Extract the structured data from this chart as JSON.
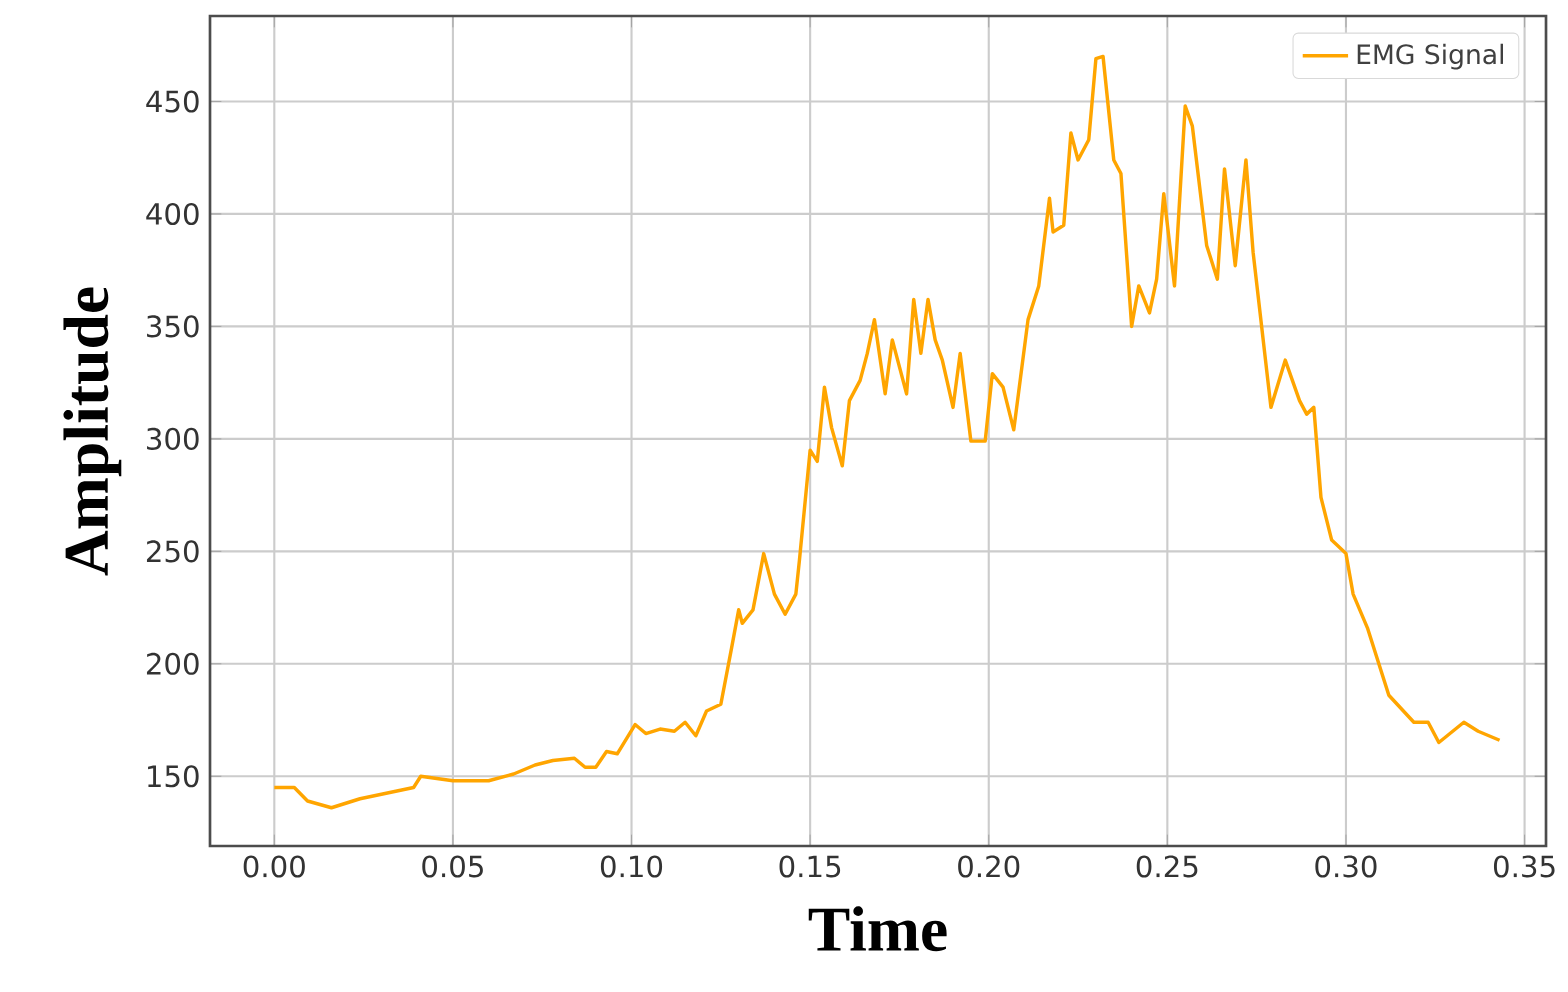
{
  "chart_data": {
    "type": "line",
    "xlabel": "Time",
    "ylabel": "Amplitude",
    "xlim": [
      -0.018,
      0.356
    ],
    "ylim": [
      119,
      488
    ],
    "xticks": [
      {
        "value": 0,
        "label": "0.00"
      },
      {
        "value": 0.05,
        "label": "0.05"
      },
      {
        "value": 0.1,
        "label": "0.10"
      },
      {
        "value": 0.15,
        "label": "0.15"
      },
      {
        "value": 0.2,
        "label": "0.20"
      },
      {
        "value": 0.25,
        "label": "0.25"
      },
      {
        "value": 0.3,
        "label": "0.30"
      },
      {
        "value": 0.35,
        "label": "0.35"
      }
    ],
    "yticks": [
      150,
      200,
      250,
      300,
      350,
      400,
      450
    ],
    "grid": true,
    "legend": "top right",
    "marker": "none",
    "line_style": "solid",
    "series": [
      {
        "name": "EMG Signal",
        "color": "#ffa500",
        "x": [
          0.0,
          0.0056,
          0.0093,
          0.016,
          0.024,
          0.03,
          0.039,
          0.041,
          0.05,
          0.06,
          0.067,
          0.073,
          0.078,
          0.084,
          0.087,
          0.09,
          0.093,
          0.096,
          0.101,
          0.104,
          0.108,
          0.112,
          0.115,
          0.118,
          0.121,
          0.125,
          0.128,
          0.13,
          0.131,
          0.134,
          0.137,
          0.14,
          0.143,
          0.146,
          0.147,
          0.15,
          0.152,
          0.154,
          0.156,
          0.159,
          0.161,
          0.164,
          0.166,
          0.168,
          0.171,
          0.173,
          0.177,
          0.179,
          0.181,
          0.183,
          0.185,
          0.187,
          0.19,
          0.192,
          0.195,
          0.199,
          0.201,
          0.204,
          0.207,
          0.211,
          0.214,
          0.217,
          0.218,
          0.221,
          0.223,
          0.225,
          0.228,
          0.23,
          0.232,
          0.235,
          0.237,
          0.24,
          0.242,
          0.245,
          0.247,
          0.249,
          0.252,
          0.255,
          0.257,
          0.261,
          0.264,
          0.266,
          0.269,
          0.272,
          0.274,
          0.279,
          0.283,
          0.287,
          0.289,
          0.291,
          0.293,
          0.296,
          0.3,
          0.302,
          0.306,
          0.312,
          0.319,
          0.323,
          0.326,
          0.333,
          0.337,
          0.343
        ],
        "values": [
          145,
          145,
          139,
          136,
          140,
          142,
          145,
          150,
          148,
          148,
          151,
          155,
          157,
          158,
          154,
          154,
          161,
          160,
          173,
          169,
          171,
          170,
          174,
          168,
          179,
          182,
          207,
          224,
          218,
          224,
          249,
          231,
          222,
          231,
          246,
          295,
          290,
          323,
          305,
          288,
          317,
          326,
          338,
          353,
          320,
          344,
          320,
          362,
          338,
          362,
          344,
          335,
          314,
          338,
          299,
          299,
          329,
          323,
          304,
          353,
          368,
          407,
          392,
          395,
          436,
          424,
          433,
          469,
          470,
          424,
          418,
          350,
          368,
          356,
          371,
          409,
          368,
          448,
          439,
          386,
          371,
          420,
          377,
          424,
          383,
          314,
          335,
          317,
          311,
          314,
          274,
          255,
          249,
          231,
          216,
          186,
          174,
          174,
          165,
          174,
          170,
          166
        ]
      }
    ]
  }
}
